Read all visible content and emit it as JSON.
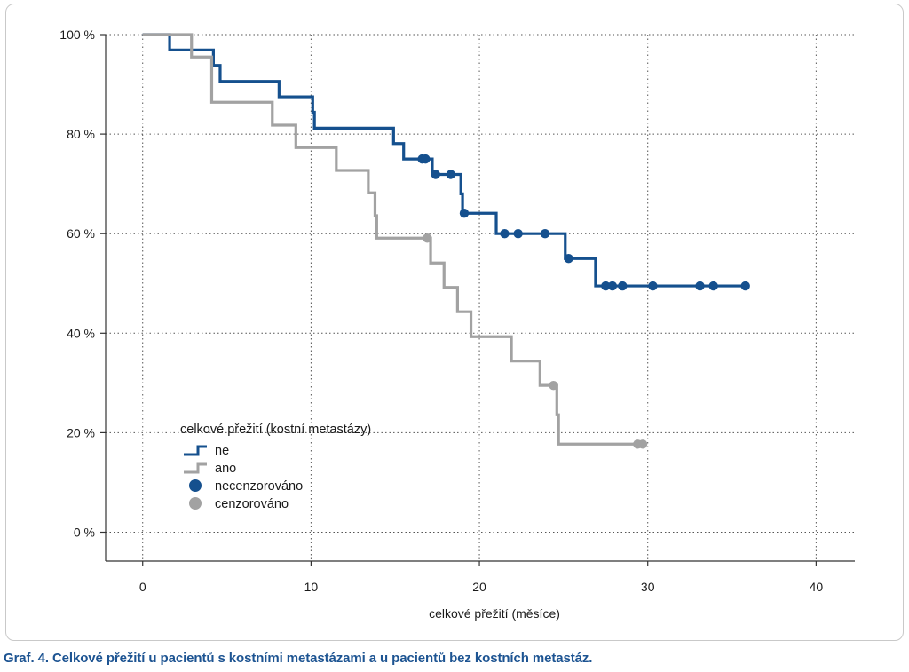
{
  "caption": "Graf. 4. Celkové přežití u pacientů s kostními metastázami a u pacientů bez kostních metastáz.",
  "chart_data": {
    "type": "line",
    "subtype": "kaplan-meier-step",
    "title": "",
    "xlabel": "celkové přežití (měsíce)",
    "ylabel": "",
    "xlim": [
      -2.2,
      42.3
    ],
    "ylim": [
      -5.8,
      100
    ],
    "xticks": [
      0,
      10,
      20,
      30,
      40
    ],
    "xtick_labels": [
      "0",
      "10",
      "20",
      "30",
      "40"
    ],
    "yticks": [
      0,
      20,
      40,
      60,
      80,
      100
    ],
    "ytick_labels": [
      "0 %",
      "20 %",
      "40 %",
      "60 %",
      "80 %",
      "100 %"
    ],
    "grid": true,
    "legend": {
      "title": "celkové přežití (kostní metastázy)",
      "placement": "lower-left",
      "entries": [
        {
          "label": "ne",
          "kind": "step-line",
          "color": "#15508e"
        },
        {
          "label": "ano",
          "kind": "step-line",
          "color": "#a2a2a2"
        },
        {
          "label": "necenzorováno",
          "kind": "dot",
          "color": "#15508e"
        },
        {
          "label": "cenzorováno",
          "kind": "dot",
          "color": "#a2a2a2"
        }
      ]
    },
    "series": [
      {
        "name": "ne",
        "color": "#15508e",
        "steps": [
          [
            0,
            100
          ],
          [
            1.6,
            96.9
          ],
          [
            4.2,
            93.8
          ],
          [
            4.6,
            90.6
          ],
          [
            8.1,
            87.5
          ],
          [
            10.1,
            84.4
          ],
          [
            10.2,
            81.2
          ],
          [
            14.9,
            78.1
          ],
          [
            15.5,
            75.0
          ],
          [
            17.2,
            71.9
          ],
          [
            18.9,
            68.0
          ],
          [
            19.0,
            64.1
          ],
          [
            21.0,
            60.0
          ],
          [
            25.1,
            55.0
          ],
          [
            26.9,
            49.5
          ],
          [
            35.8,
            49.5
          ]
        ],
        "marks": [
          [
            16.6,
            75.0
          ],
          [
            16.8,
            75.0
          ],
          [
            17.4,
            71.9
          ],
          [
            18.3,
            71.9
          ],
          [
            19.1,
            64.1
          ],
          [
            21.5,
            60.0
          ],
          [
            22.3,
            60.0
          ],
          [
            23.9,
            60.0
          ],
          [
            25.3,
            55.0
          ],
          [
            27.5,
            49.5
          ],
          [
            27.9,
            49.5
          ],
          [
            28.5,
            49.5
          ],
          [
            30.3,
            49.5
          ],
          [
            33.1,
            49.5
          ],
          [
            33.9,
            49.5
          ],
          [
            35.8,
            49.5
          ]
        ]
      },
      {
        "name": "ano",
        "color": "#a2a2a2",
        "steps": [
          [
            0,
            100
          ],
          [
            2.9,
            95.5
          ],
          [
            4.1,
            86.4
          ],
          [
            7.7,
            81.8
          ],
          [
            9.1,
            77.3
          ],
          [
            11.5,
            72.7
          ],
          [
            13.4,
            68.2
          ],
          [
            13.8,
            63.6
          ],
          [
            13.9,
            59.1
          ],
          [
            17.1,
            54.1
          ],
          [
            17.9,
            49.2
          ],
          [
            18.7,
            44.3
          ],
          [
            19.5,
            39.3
          ],
          [
            21.9,
            34.4
          ],
          [
            23.6,
            29.5
          ],
          [
            24.6,
            23.6
          ],
          [
            24.7,
            17.7
          ],
          [
            29.7,
            17.7
          ]
        ],
        "marks": [
          [
            16.9,
            59.1
          ],
          [
            24.4,
            29.5
          ],
          [
            29.4,
            17.7
          ],
          [
            29.7,
            17.7
          ]
        ]
      }
    ]
  }
}
